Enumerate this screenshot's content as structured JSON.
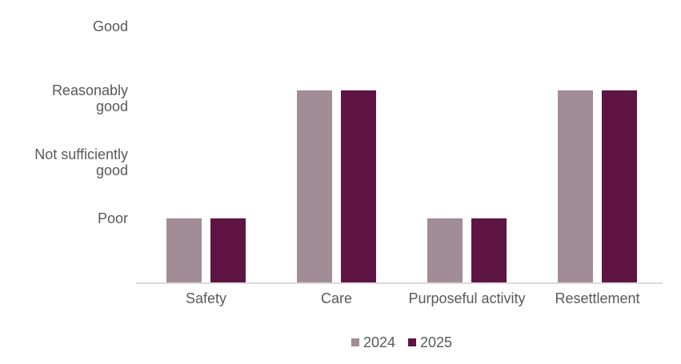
{
  "chart_data": {
    "type": "bar",
    "title": "",
    "xlabel": "",
    "ylabel": "",
    "grid": false,
    "legend_position": "bottom",
    "categories": [
      "Safety",
      "Care",
      "Purposeful activity",
      "Resettlement"
    ],
    "series": [
      {
        "name": "2024",
        "color": "#a28c96",
        "values": [
          1,
          3,
          1,
          3
        ]
      },
      {
        "name": "2025",
        "color": "#5e1543",
        "values": [
          1,
          3,
          1,
          3
        ]
      }
    ],
    "ylim": [
      0,
      4
    ],
    "y_ticks": [
      {
        "value": 4,
        "label": "Good"
      },
      {
        "value": 3,
        "label": "Reasonably\ngood"
      },
      {
        "value": 2,
        "label": "Not sufficiently\ngood"
      },
      {
        "value": 1,
        "label": "Poor"
      }
    ],
    "rating_scale_note": "Ratings: Poor, Not sufficiently good, Reasonably good, Good",
    "colors": {
      "axis_line": "#d9d9d9",
      "text": "#595959"
    }
  }
}
